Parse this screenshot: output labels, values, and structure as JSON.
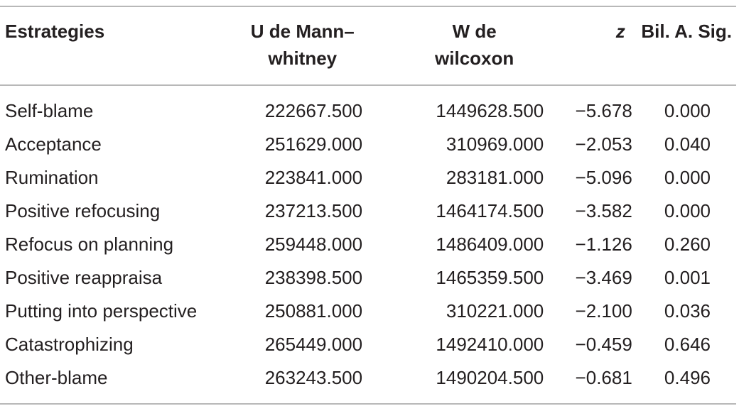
{
  "table": {
    "headers": [
      [
        "Estrategies"
      ],
      [
        "U de Mann–",
        "whitney"
      ],
      [
        "W de",
        "wilcoxon"
      ],
      [
        "z"
      ],
      [
        "Bil. A. Sig."
      ]
    ],
    "rows": [
      [
        "Self-blame",
        "222667.500",
        "1449628.500",
        "−5.678",
        "0.000"
      ],
      [
        "Acceptance",
        "251629.000",
        "310969.000",
        "−2.053",
        "0.040"
      ],
      [
        "Rumination",
        "223841.000",
        "283181.000",
        "−5.096",
        "0.000"
      ],
      [
        "Positive refocusing",
        "237213.500",
        "1464174.500",
        "−3.582",
        "0.000"
      ],
      [
        "Refocus on planning",
        "259448.000",
        "1486409.000",
        "−1.126",
        "0.260"
      ],
      [
        "Positive reappraisa",
        "238398.500",
        "1465359.500",
        "−3.469",
        "0.001"
      ],
      [
        "Putting into perspective",
        "250881.000",
        "310221.000",
        "−2.100",
        "0.036"
      ],
      [
        "Catastrophizing",
        "265449.000",
        "1492410.000",
        "−0.459",
        "0.646"
      ],
      [
        "Other-blame",
        "263243.500",
        "1490204.500",
        "−0.681",
        "0.496"
      ]
    ]
  }
}
